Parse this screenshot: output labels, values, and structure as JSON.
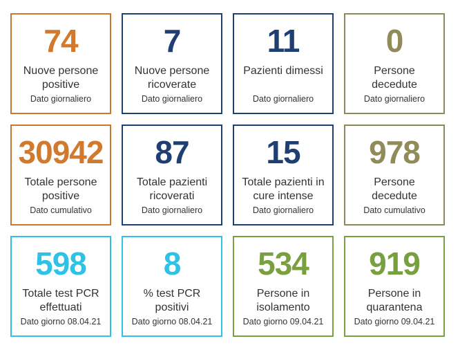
{
  "cards": [
    {
      "value": "74",
      "label_line1": "Nuove persone",
      "label_line2": "positive",
      "sub": "Dato giornaliero",
      "color": "#d17a2e"
    },
    {
      "value": "7",
      "label_line1": "Nuove persone",
      "label_line2": "ricoverate",
      "sub": "Dato giornaliero",
      "color": "#1f3f73"
    },
    {
      "value": "11",
      "label_line1": "Pazienti dimessi",
      "label_line2": "",
      "sub": "Dato giornaliero",
      "color": "#1f3f73"
    },
    {
      "value": "0",
      "label_line1": "Persone",
      "label_line2": "decedute",
      "sub": "Dato giornaliero",
      "color": "#908b58"
    },
    {
      "value": "30942",
      "label_line1": "Totale persone",
      "label_line2": "positive",
      "sub": "Dato cumulativo",
      "color": "#d17a2e"
    },
    {
      "value": "87",
      "label_line1": "Totale pazienti",
      "label_line2": "ricoverati",
      "sub": "Dato giornaliero",
      "color": "#1f3f73"
    },
    {
      "value": "15",
      "label_line1": "Totale pazienti in",
      "label_line2": "cure intense",
      "sub": "Dato giornaliero",
      "color": "#1f3f73"
    },
    {
      "value": "978",
      "label_line1": "Persone",
      "label_line2": "decedute",
      "sub": "Dato cumulativo",
      "color": "#908b58"
    },
    {
      "value": "598",
      "label_line1": "Totale test PCR",
      "label_line2": "effettuati",
      "sub": "Dato giorno 08.04.21",
      "color": "#2ec3e6"
    },
    {
      "value": "8",
      "label_line1": "% test PCR",
      "label_line2": "positivi",
      "sub": "Dato giorno 08.04.21",
      "color": "#2ec3e6"
    },
    {
      "value": "534",
      "label_line1": "Persone in",
      "label_line2": "isolamento",
      "sub": "Dato giorno 09.04.21",
      "color": "#78a03e"
    },
    {
      "value": "919",
      "label_line1": "Persone in",
      "label_line2": "quarantena",
      "sub": "Dato giorno 09.04.21",
      "color": "#78a03e"
    }
  ]
}
